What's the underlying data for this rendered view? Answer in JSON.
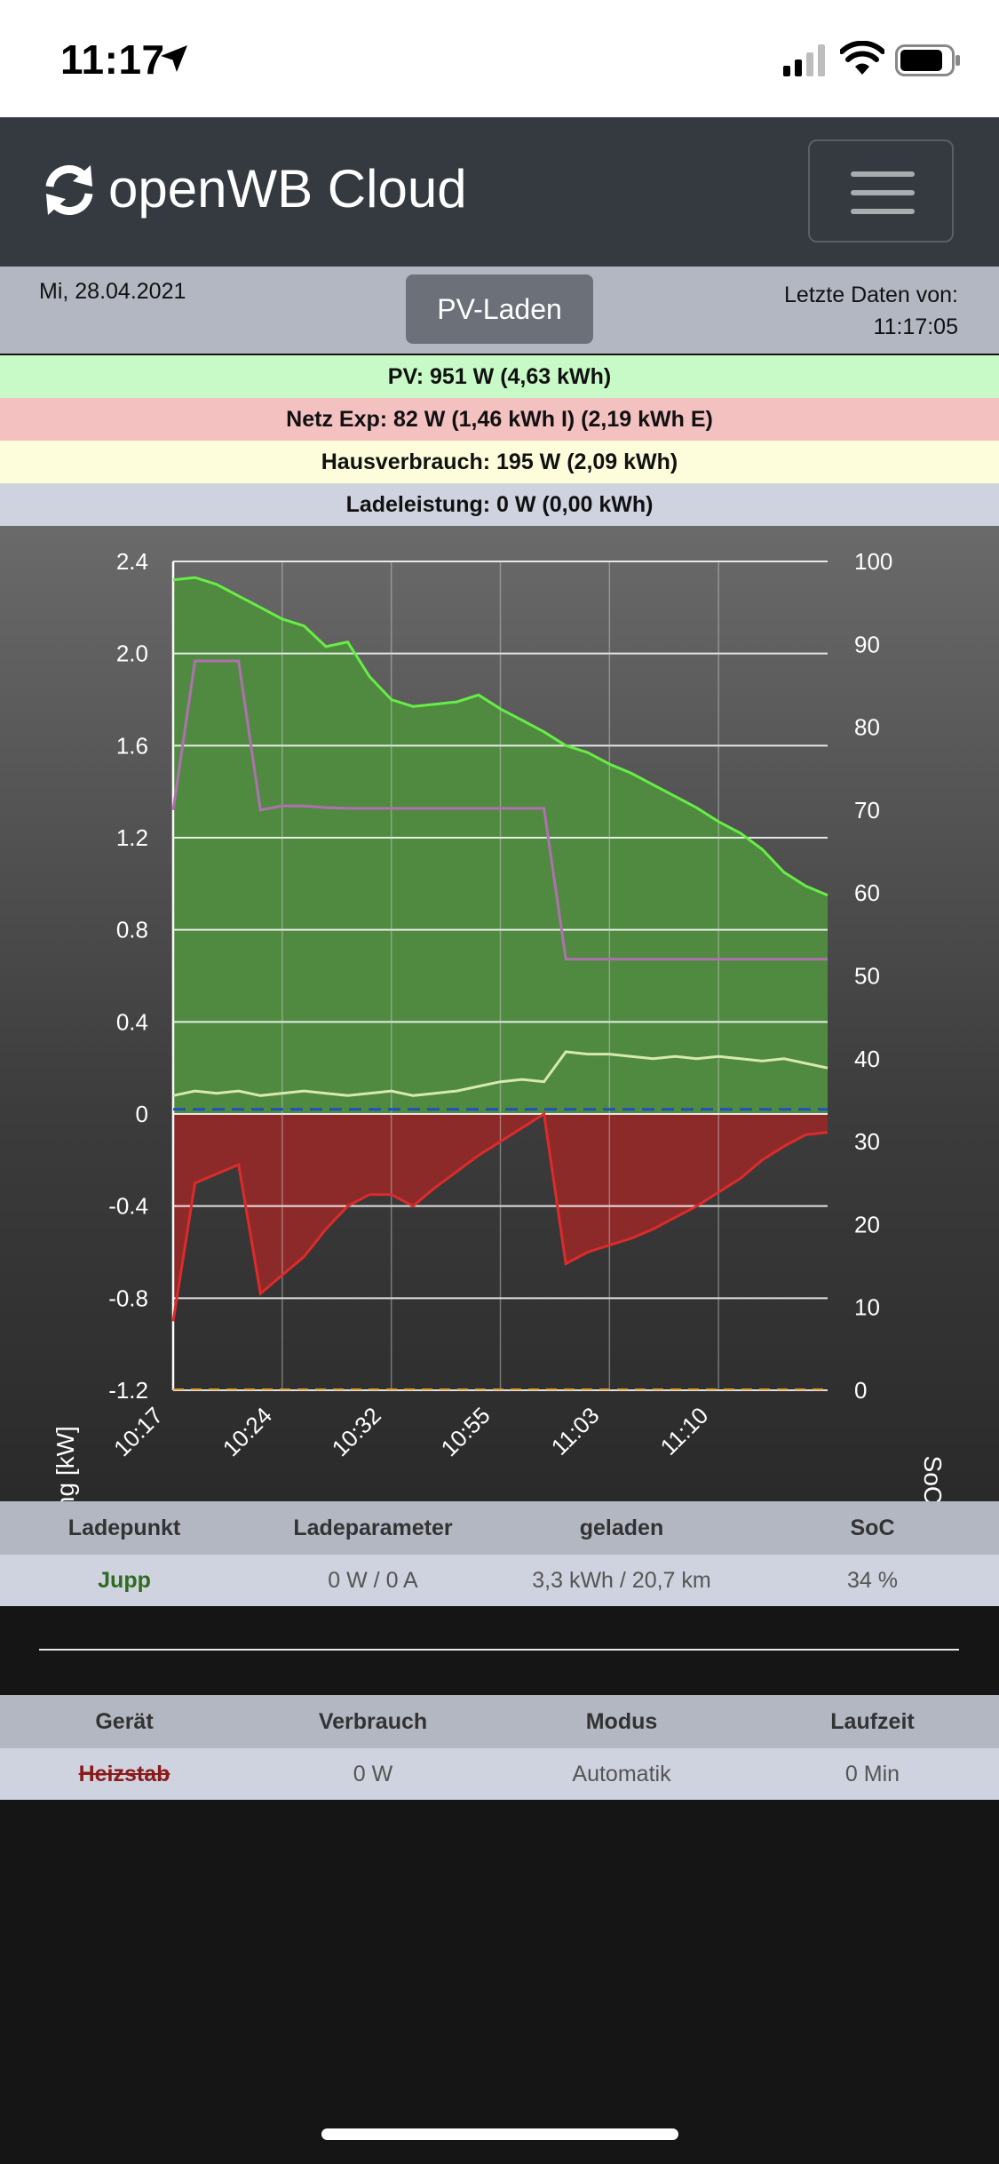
{
  "status_bar": {
    "time": "11:17"
  },
  "navbar": {
    "brand": "openWB Cloud",
    "menu_icon": "hamburger-icon",
    "brand_icon": "sync-icon"
  },
  "info": {
    "date": "Mi, 28.04.2021",
    "mode": "PV-Laden",
    "last_data_label": "Letzte Daten von:",
    "last_data_time": "11:17:05"
  },
  "stats": {
    "pv": "PV: 951 W (4,63 kWh)",
    "netz": "Netz Exp: 82 W (1,46 kWh I) (2,19 kWh E)",
    "haus": "Hausverbrauch: 195 W (2,09 kWh)",
    "lade": "Ladeleistung: 0 W (0,00 kWh)"
  },
  "chart_data": {
    "type": "line",
    "ylabel": "Leistung [kW]",
    "ylabel_right": "SoC [%]",
    "ylim": [
      -1.2,
      2.4
    ],
    "ylim_right": [
      0,
      100
    ],
    "y_ticks": [
      "2.4",
      "2.0",
      "1.6",
      "1.2",
      "0.8",
      "0.4",
      "0",
      "-0.4",
      "-0.8",
      "-1.2"
    ],
    "y_ticks_right": [
      "100",
      "90",
      "80",
      "70",
      "60",
      "50",
      "40",
      "30",
      "20",
      "10",
      "0"
    ],
    "x_ticks": [
      "10:17",
      "10:24",
      "10:32",
      "10:55",
      "11:03",
      "11:10"
    ],
    "grid": true,
    "colors": {
      "pv": "#66ee44",
      "pv_fill": "#4f8a40",
      "netz": "#dd2a2a",
      "netz_fill": "#8c2a2a",
      "haus": "#d8e8b0",
      "soc": "#b070b0",
      "lade": "#2050c0"
    },
    "series": [
      {
        "key": "pv",
        "values": [
          2.32,
          2.33,
          2.3,
          2.25,
          2.2,
          2.15,
          2.12,
          2.03,
          2.05,
          1.9,
          1.8,
          1.77,
          1.78,
          1.79,
          1.82,
          1.76,
          1.71,
          1.66,
          1.6,
          1.57,
          1.52,
          1.48,
          1.43,
          1.38,
          1.33,
          1.27,
          1.22,
          1.15,
          1.05,
          0.99,
          0.95
        ]
      },
      {
        "key": "netz",
        "values": [
          -0.9,
          -0.3,
          -0.26,
          -0.22,
          -0.78,
          -0.7,
          -0.62,
          -0.5,
          -0.4,
          -0.35,
          -0.35,
          -0.4,
          -0.32,
          -0.25,
          -0.18,
          -0.12,
          -0.06,
          0.0,
          -0.65,
          -0.6,
          -0.57,
          -0.54,
          -0.5,
          -0.45,
          -0.4,
          -0.34,
          -0.28,
          -0.2,
          -0.14,
          -0.09,
          -0.08
        ]
      },
      {
        "key": "haus",
        "values": [
          0.08,
          0.1,
          0.09,
          0.1,
          0.08,
          0.09,
          0.1,
          0.09,
          0.08,
          0.09,
          0.1,
          0.08,
          0.09,
          0.1,
          0.12,
          0.14,
          0.15,
          0.14,
          0.27,
          0.26,
          0.26,
          0.25,
          0.24,
          0.25,
          0.24,
          0.25,
          0.24,
          0.23,
          0.24,
          0.22,
          0.2
        ]
      },
      {
        "key": "soc",
        "values": [
          70,
          88,
          88,
          88,
          70,
          70.5,
          70.5,
          70.3,
          70.2,
          70.2,
          70.2,
          70.2,
          70.2,
          70.2,
          70.2,
          70.2,
          70.2,
          70.2,
          52,
          52,
          52,
          52,
          52,
          52,
          52,
          52,
          52,
          52,
          52,
          52,
          52
        ]
      },
      {
        "key": "lade",
        "values": [
          0.02,
          0.02,
          0.02,
          0.02,
          0.02,
          0.02,
          0.02,
          0.02,
          0.02,
          0.02,
          0.02,
          0.02,
          0.02,
          0.02,
          0.02,
          0.02,
          0.02,
          0.02,
          0.02,
          0.02,
          0.02,
          0.02,
          0.02,
          0.02,
          0.02,
          0.02,
          0.02,
          0.02,
          0.02,
          0.02,
          0.02
        ]
      }
    ]
  },
  "ladepunkt_table": {
    "headers": [
      "Ladepunkt",
      "Ladeparameter",
      "geladen",
      "SoC"
    ],
    "rows": [
      {
        "name": "Jupp",
        "param": "0 W / 0 A",
        "geladen": "3,3 kWh / 20,7 km",
        "soc": "34 %"
      }
    ]
  },
  "geraete_table": {
    "headers": [
      "Gerät",
      "Verbrauch",
      "Modus",
      "Laufzeit"
    ],
    "rows": [
      {
        "name": "Heizstab",
        "verbrauch": "0 W",
        "modus": "Automatik",
        "laufzeit": "0 Min"
      }
    ]
  }
}
